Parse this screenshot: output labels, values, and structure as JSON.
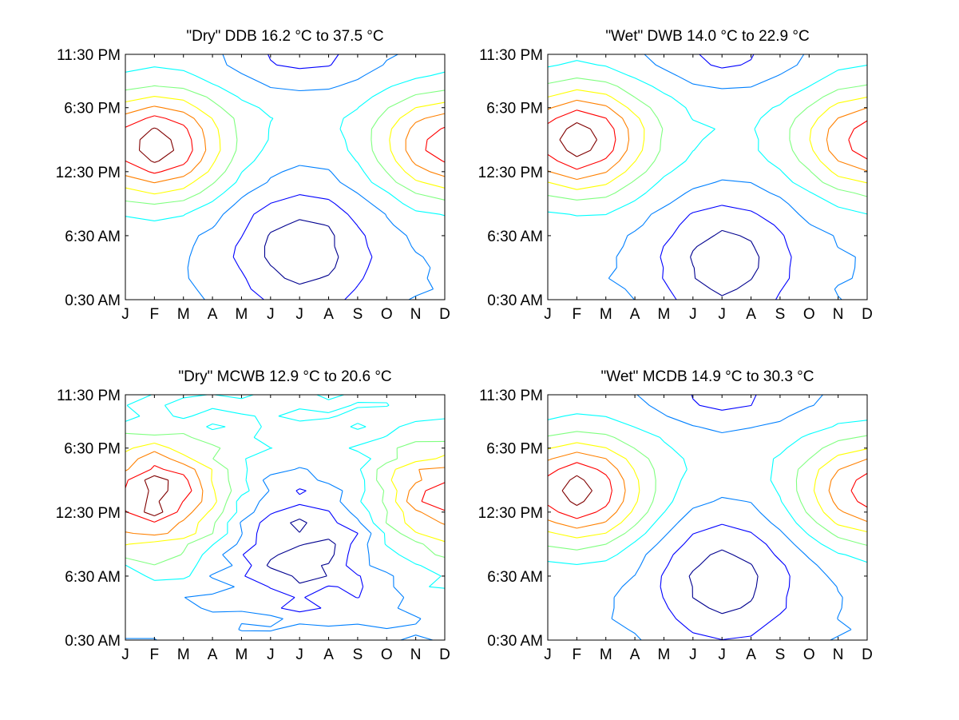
{
  "figure": {
    "background": "#ffffff",
    "colormap": [
      "#00008f",
      "#0000ff",
      "#0080ff",
      "#00ffff",
      "#80ff80",
      "#ffff00",
      "#ff8000",
      "#ff0000",
      "#800000"
    ]
  },
  "chart_data": [
    {
      "type": "contour",
      "title": "\"Dry\" DDB  16.2 °C to  37.5 °C",
      "range_min_c": 16.2,
      "range_max_c": 37.5,
      "x_tick_labels": [
        "J",
        "F",
        "M",
        "A",
        "M",
        "J",
        "J",
        "A",
        "S",
        "O",
        "N",
        "D"
      ],
      "y_tick_labels": [
        "0:30 AM",
        "6:30 AM",
        "12:30 PM",
        "6:30 PM",
        "11:30 PM"
      ],
      "xlim": [
        1,
        12
      ],
      "ylim": [
        0.5,
        23.5
      ],
      "grid": false,
      "field": {
        "peak_month": 2.0,
        "peak_hour": 15.0,
        "second_peak_month": 12.0,
        "trough_month": 7.0,
        "trough_hour": 5.0,
        "x_shape": true
      }
    },
    {
      "type": "contour",
      "title": "\"Wet\" DWB  14.0 °C to  22.9 °C",
      "range_min_c": 14.0,
      "range_max_c": 22.9,
      "x_tick_labels": [
        "J",
        "F",
        "M",
        "A",
        "M",
        "J",
        "J",
        "A",
        "S",
        "O",
        "N",
        "D"
      ],
      "y_tick_labels": [
        "0:30 AM",
        "6:30 AM",
        "12:30 PM",
        "6:30 PM",
        "11:30 PM"
      ],
      "xlim": [
        1,
        12
      ],
      "ylim": [
        0.5,
        23.5
      ],
      "grid": false,
      "field": {
        "peak_month": 2.0,
        "peak_hour": 15.5,
        "second_peak_month": 12.0,
        "trough_month": 7.0,
        "trough_hour": 4.0,
        "x_shape": true
      }
    },
    {
      "type": "contour",
      "title": "\"Dry\" MCWB  12.9 °C to  20.6 °C",
      "range_min_c": 12.9,
      "range_max_c": 20.6,
      "x_tick_labels": [
        "J",
        "F",
        "M",
        "A",
        "M",
        "J",
        "J",
        "A",
        "S",
        "O",
        "N",
        "D"
      ],
      "y_tick_labels": [
        "0:30 AM",
        "6:30 AM",
        "12:30 PM",
        "6:30 PM",
        "11:30 PM"
      ],
      "xlim": [
        1,
        12
      ],
      "ylim": [
        0.5,
        23.5
      ],
      "grid": false,
      "field": {
        "peak_month": 2.0,
        "peak_hour": 14.0,
        "second_peak_month": 12.0,
        "trough_month": 7.0,
        "trough_hour": 9.0,
        "x_shape": false,
        "noisy": true
      }
    },
    {
      "type": "contour",
      "title": "\"Wet\" MCDB  14.9 °C to  30.3 °C",
      "range_min_c": 14.9,
      "range_max_c": 30.3,
      "x_tick_labels": [
        "J",
        "F",
        "M",
        "A",
        "M",
        "J",
        "J",
        "A",
        "S",
        "O",
        "N",
        "D"
      ],
      "y_tick_labels": [
        "0:30 AM",
        "6:30 AM",
        "12:30 PM",
        "6:30 PM",
        "11:30 PM"
      ],
      "xlim": [
        1,
        12
      ],
      "ylim": [
        0.5,
        23.5
      ],
      "grid": false,
      "field": {
        "peak_month": 2.0,
        "peak_hour": 14.5,
        "second_peak_month": 12.0,
        "trough_month": 7.0,
        "trough_hour": 6.0,
        "x_shape": true
      }
    }
  ]
}
